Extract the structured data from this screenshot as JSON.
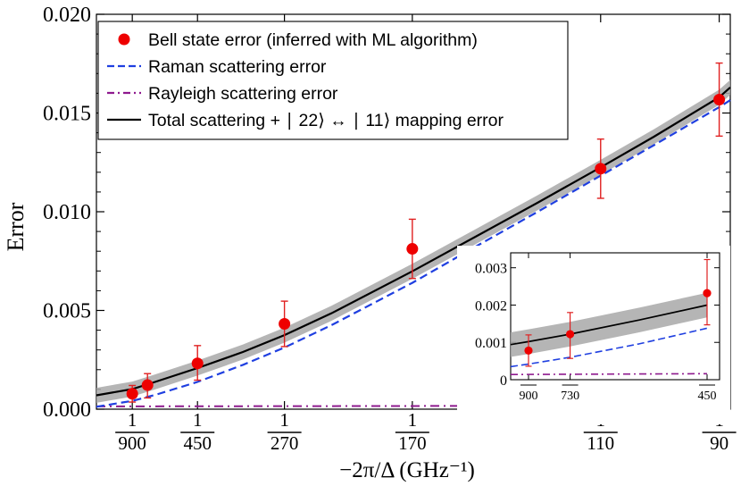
{
  "chart_data": {
    "type": "scatter",
    "ylabel": "Error",
    "xlabel": "−2π/Δ (GHz⁻¹)",
    "xlim": [
      0.0005,
      0.0113
    ],
    "ylim": [
      0.0,
      0.02
    ],
    "yticks": [
      {
        "value": 0.0,
        "label": "0.000"
      },
      {
        "value": 0.005,
        "label": "0.005"
      },
      {
        "value": 0.01,
        "label": "0.010"
      },
      {
        "value": 0.015,
        "label": "0.015"
      },
      {
        "value": 0.02,
        "label": "0.020"
      }
    ],
    "xticks": [
      {
        "value": 0.0011111,
        "numerator": "1",
        "denominator": "900"
      },
      {
        "value": 0.0022222,
        "numerator": "1",
        "denominator": "450"
      },
      {
        "value": 0.0037037,
        "numerator": "1",
        "denominator": "270"
      },
      {
        "value": 0.0058824,
        "numerator": "1",
        "denominator": "170"
      },
      {
        "value": 0.0090909,
        "numerator": "1",
        "denominator": "110"
      },
      {
        "value": 0.0111111,
        "numerator": "1",
        "denominator": "90"
      }
    ],
    "legend": {
      "placement": "top-left",
      "entries": [
        {
          "label": "Bell state error (inferred with ML algorithm)",
          "style": "marker",
          "color": "#ee0000"
        },
        {
          "label": "Raman scattering error",
          "style": "dashed",
          "color": "#1f3fe0"
        },
        {
          "label": "Rayleigh scattering error",
          "style": "dashdot",
          "color": "#8e1a8e"
        },
        {
          "label": "Total scattering + ∣ 22⟩ ↔ ∣ 11⟩ mapping error",
          "style": "solid",
          "color": "#000000"
        }
      ]
    },
    "series": [
      {
        "name": "Bell state error (inferred with ML algorithm)",
        "kind": "points",
        "color": "#ee0000",
        "points": [
          {
            "x": 0.0011111,
            "y": 0.00078,
            "err_low": 0.00042,
            "err_high": 0.00042
          },
          {
            "x": 0.0013699,
            "y": 0.00122,
            "err_low": 0.00065,
            "err_high": 0.00058
          },
          {
            "x": 0.0022222,
            "y": 0.00232,
            "err_low": 0.00085,
            "err_high": 0.0009
          },
          {
            "x": 0.0037037,
            "y": 0.00432,
            "err_low": 0.00115,
            "err_high": 0.00115
          },
          {
            "x": 0.0058824,
            "y": 0.00812,
            "err_low": 0.0015,
            "err_high": 0.0015
          },
          {
            "x": 0.0090909,
            "y": 0.01218,
            "err_low": 0.0015,
            "err_high": 0.0015
          },
          {
            "x": 0.0111111,
            "y": 0.01568,
            "err_low": 0.00185,
            "err_high": 0.00185
          }
        ]
      },
      {
        "name": "Raman scattering error",
        "kind": "line",
        "style": "dashed",
        "color": "#1f3fe0",
        "x": [
          0.0005,
          0.0011111,
          0.0015,
          0.0022222,
          0.003,
          0.0037037,
          0.0045,
          0.0058824,
          0.007,
          0.008,
          0.0090909,
          0.01,
          0.0111111,
          0.0113
        ],
        "y": [
          0.00012,
          0.00042,
          0.00072,
          0.00138,
          0.00225,
          0.00312,
          0.00425,
          0.0064,
          0.0083,
          0.00997,
          0.01183,
          0.01337,
          0.0153,
          0.01565
        ]
      },
      {
        "name": "Rayleigh scattering error",
        "kind": "line",
        "style": "dashdot",
        "color": "#8e1a8e",
        "x": [
          0.0005,
          0.0113
        ],
        "y": [
          0.00014,
          0.00018
        ]
      },
      {
        "name": "Total scattering + ∣ 22⟩ ↔ ∣ 11⟩ mapping error",
        "kind": "line",
        "style": "solid",
        "color": "#000000",
        "band_color": "#a8a8a8",
        "band_half_width": 0.00038,
        "x": [
          0.0005,
          0.0011111,
          0.0015,
          0.0022222,
          0.003,
          0.0037037,
          0.0045,
          0.0058824,
          0.007,
          0.008,
          0.0090909,
          0.01,
          0.0111111,
          0.0113
        ],
        "y": [
          0.0007,
          0.00102,
          0.00138,
          0.00208,
          0.0029,
          0.00375,
          0.00485,
          0.00698,
          0.0088,
          0.01043,
          0.01225,
          0.0138,
          0.0158,
          0.0163
        ]
      }
    ],
    "inset": {
      "placement": "lower-right",
      "ylim": [
        0.0,
        0.0034
      ],
      "yticks": [
        {
          "value": 0.0,
          "label": "0"
        },
        {
          "value": 0.001,
          "label": "0.001"
        },
        {
          "value": 0.002,
          "label": "0.002"
        },
        {
          "value": 0.003,
          "label": "0.003"
        }
      ],
      "xlim": [
        0.001,
        0.0023
      ],
      "xticks": [
        {
          "value": 0.0011111,
          "label": "900"
        },
        {
          "value": 0.0013699,
          "label": "730"
        },
        {
          "value": 0.0022222,
          "label": "450"
        }
      ],
      "points": [
        {
          "x": 0.0011111,
          "y": 0.00078,
          "err_low": 0.00042,
          "err_high": 0.00042
        },
        {
          "x": 0.0013699,
          "y": 0.00122,
          "err_low": 0.00065,
          "err_high": 0.00058
        },
        {
          "x": 0.0022222,
          "y": 0.00232,
          "err_low": 0.00085,
          "err_high": 0.0009
        }
      ],
      "raman": {
        "x": [
          0.001,
          0.0011111,
          0.0013699,
          0.0018,
          0.0022222
        ],
        "y": [
          0.00035,
          0.00042,
          0.0006,
          0.00096,
          0.00138
        ]
      },
      "rayleigh": {
        "x": [
          0.001,
          0.0022222
        ],
        "y": [
          0.00014,
          0.00016
        ]
      },
      "total": {
        "x": [
          0.001,
          0.0011111,
          0.0013699,
          0.0018,
          0.0022222
        ],
        "y": [
          0.00094,
          0.00102,
          0.00122,
          0.0016,
          0.002
        ]
      },
      "band_half_width": 0.00033
    }
  }
}
